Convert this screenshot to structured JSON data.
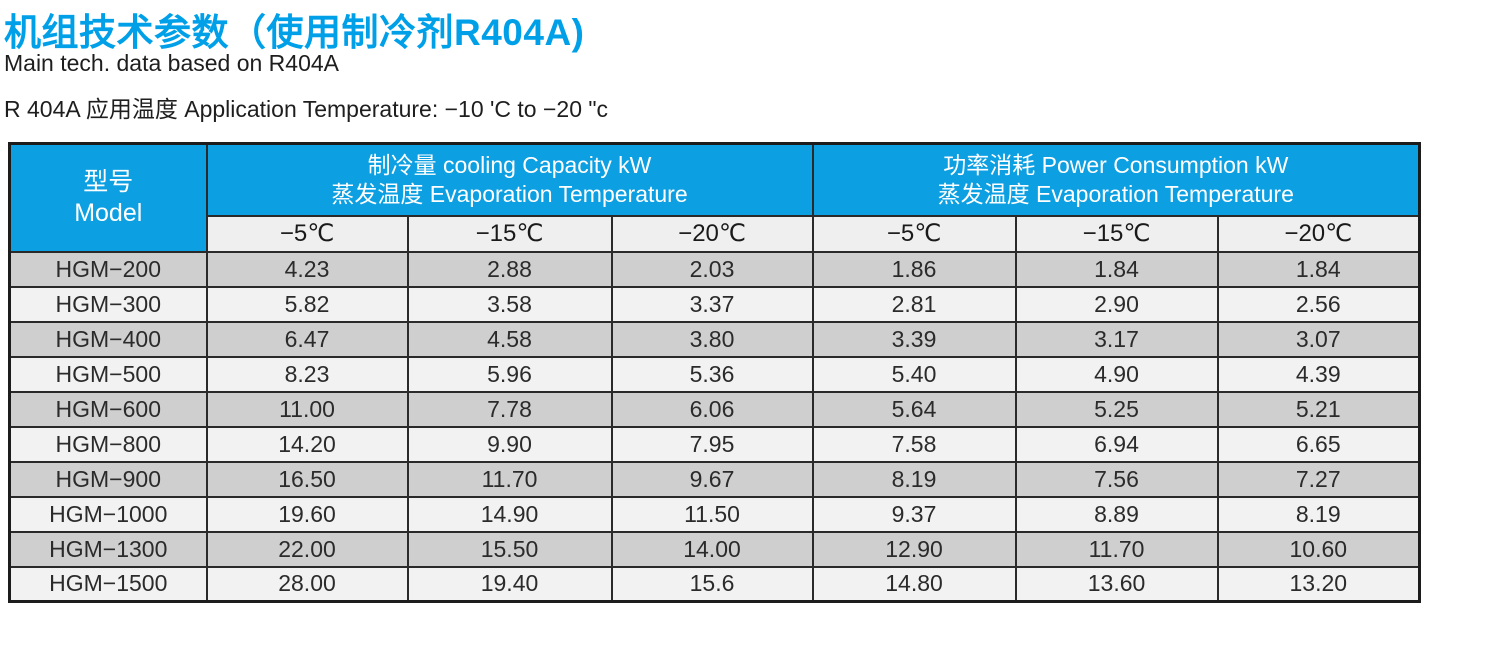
{
  "page": {
    "title": "机组技术参数（使用制冷剂R404A)",
    "subtitle": "Main tech. data based on R404A",
    "application_temperature": "R 404A 应用温度 Application Temperature: −10 'C to −20 \"c"
  },
  "colors": {
    "title_blue": "#00A0E9",
    "header_blue": "#0C9FE2",
    "row_dark": "#CFCFCF",
    "row_light": "#F2F2F2",
    "subheader_bg": "#EFEFEF",
    "border_dark": "#2A2A2A"
  },
  "table": {
    "model_header": {
      "zh": "型号",
      "en": "Model"
    },
    "groups": [
      {
        "line1": "制冷量 cooling Capacity kW",
        "line2": "蒸发温度 Evaporation Temperature"
      },
      {
        "line1": "功率消耗 Power Consumption kW",
        "line2": "蒸发温度 Evaporation Temperature"
      }
    ],
    "temp_columns": [
      "−5℃",
      "−15℃",
      "−20℃"
    ],
    "rows": [
      {
        "model": "HGM−200",
        "cooling": [
          "4.23",
          "2.88",
          "2.03"
        ],
        "power": [
          "1.86",
          "1.84",
          "1.84"
        ]
      },
      {
        "model": "HGM−300",
        "cooling": [
          "5.82",
          "3.58",
          "3.37"
        ],
        "power": [
          "2.81",
          "2.90",
          "2.56"
        ]
      },
      {
        "model": "HGM−400",
        "cooling": [
          "6.47",
          "4.58",
          "3.80"
        ],
        "power": [
          "3.39",
          "3.17",
          "3.07"
        ]
      },
      {
        "model": "HGM−500",
        "cooling": [
          "8.23",
          "5.96",
          "5.36"
        ],
        "power": [
          "5.40",
          "4.90",
          "4.39"
        ]
      },
      {
        "model": "HGM−600",
        "cooling": [
          "11.00",
          "7.78",
          "6.06"
        ],
        "power": [
          "5.64",
          "5.25",
          "5.21"
        ]
      },
      {
        "model": "HGM−800",
        "cooling": [
          "14.20",
          "9.90",
          "7.95"
        ],
        "power": [
          "7.58",
          "6.94",
          "6.65"
        ]
      },
      {
        "model": "HGM−900",
        "cooling": [
          "16.50",
          "11.70",
          "9.67"
        ],
        "power": [
          "8.19",
          "7.56",
          "7.27"
        ]
      },
      {
        "model": "HGM−1000",
        "cooling": [
          "19.60",
          "14.90",
          "11.50"
        ],
        "power": [
          "9.37",
          "8.89",
          "8.19"
        ]
      },
      {
        "model": "HGM−1300",
        "cooling": [
          "22.00",
          "15.50",
          "14.00"
        ],
        "power": [
          "12.90",
          "11.70",
          "10.60"
        ]
      },
      {
        "model": "HGM−1500",
        "cooling": [
          "28.00",
          "19.40",
          "15.6"
        ],
        "power": [
          "14.80",
          "13.60",
          "13.20"
        ]
      }
    ]
  }
}
